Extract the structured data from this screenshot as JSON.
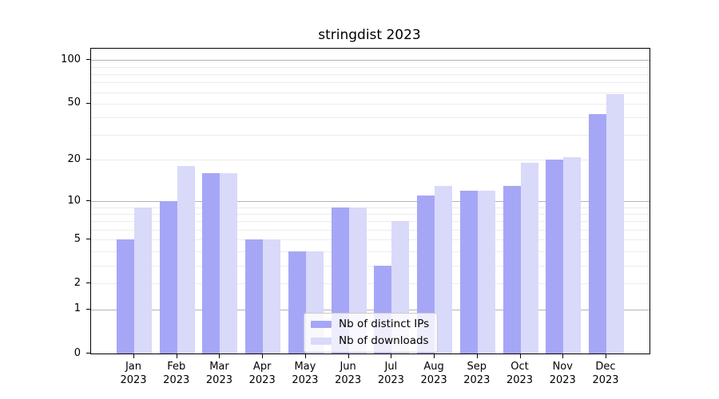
{
  "chart_data": {
    "type": "bar",
    "title": "stringdist 2023",
    "categories": [
      "Jan 2023",
      "Feb 2023",
      "Mar 2023",
      "Apr 2023",
      "May 2023",
      "Jun 2023",
      "Jul 2023",
      "Aug 2023",
      "Sep 2023",
      "Oct 2023",
      "Nov 2023",
      "Dec 2023"
    ],
    "x_tick_line1": [
      "Jan",
      "Feb",
      "Mar",
      "Apr",
      "May",
      "Jun",
      "Jul",
      "Aug",
      "Sep",
      "Oct",
      "Nov",
      "Dec"
    ],
    "x_tick_line2": "2023",
    "series": [
      {
        "key": "distinct-ips",
        "name": "Nb of distinct IPs",
        "color": "#a6a6f7",
        "values": [
          5,
          10,
          16,
          5,
          4,
          9,
          3,
          11,
          12,
          13,
          20,
          42
        ]
      },
      {
        "key": "downloads",
        "name": "Nb of downloads",
        "color": "#d9d9fa",
        "values": [
          9,
          18,
          16,
          5,
          4,
          9,
          7,
          13,
          12,
          19,
          21,
          58
        ]
      }
    ],
    "yscale": "log1p",
    "ylim": [
      0,
      120
    ],
    "y_ticks": [
      0,
      1,
      2,
      5,
      10,
      20,
      50,
      100
    ],
    "y_major_gridlines": [
      1,
      10,
      100
    ],
    "y_minor_gridlines": [
      2,
      3,
      4,
      5,
      6,
      7,
      8,
      9,
      20,
      30,
      40,
      50,
      60,
      70,
      80,
      90
    ],
    "grid": true,
    "xlabel": "",
    "ylabel": "",
    "legend_position": "lower-center"
  },
  "colors": {
    "bar_distinct_ips": "#a6a6f7",
    "bar_downloads": "#d9d9fa",
    "grid_major": "#b3b3b3",
    "grid_minor": "#ececec",
    "axis_line": "#000000",
    "legend_border": "#cccccc",
    "text": "#000000"
  }
}
